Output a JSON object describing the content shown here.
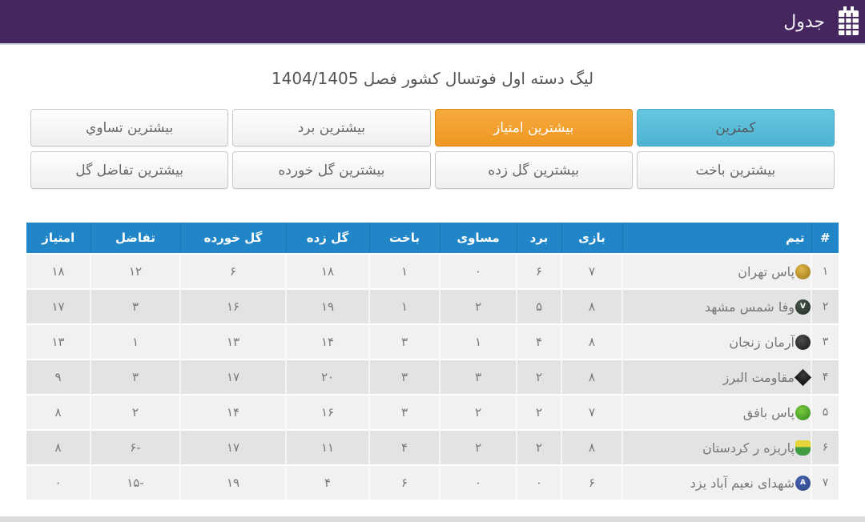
{
  "app_bar": {
    "title": "جدول",
    "icon": "table-icon",
    "bg_color": "#45265f"
  },
  "page": {
    "league_title": "لیگ دسته اول فوتسال کشور فصل 1404/1405"
  },
  "filters": {
    "active_color": "#f09c2a",
    "least_color": "#4fb6d4",
    "buttons": [
      {
        "label": "کمترین",
        "variant": "least"
      },
      {
        "label": "بیشترین امتیاز",
        "variant": "active"
      },
      {
        "label": "بیشترین برد",
        "variant": "default"
      },
      {
        "label": "بیشترین تساوي",
        "variant": "default"
      },
      {
        "label": "بیشترین باخت",
        "variant": "default"
      },
      {
        "label": "بیشترین گل زده",
        "variant": "default"
      },
      {
        "label": "بیشترین گل خورده",
        "variant": "default"
      },
      {
        "label": "بیشترین تفاضل گل",
        "variant": "default"
      }
    ]
  },
  "table": {
    "header_color": "#2086c8",
    "columns": [
      "#",
      "تیم",
      "بازی",
      "برد",
      "مساوی",
      "باخت",
      "گل زده",
      "گل خورده",
      "تفاضل",
      "امتیاز"
    ],
    "rows": [
      {
        "rank": "۱",
        "team": "پاس تهران",
        "logo": {
          "shape": "circle",
          "colors": [
            "#e0b84a",
            "#9a7517"
          ],
          "letter": ""
        },
        "played": "۷",
        "won": "۶",
        "drawn": "۰",
        "lost": "۱",
        "gf": "۱۸",
        "ga": "۶",
        "gd": "۱۲",
        "pts": "۱۸"
      },
      {
        "rank": "۲",
        "team": "وفا شمس مشهد",
        "logo": {
          "shape": "circle",
          "colors": [
            "#4a584f",
            "#1f2a24"
          ],
          "letter": "V"
        },
        "played": "۸",
        "won": "۵",
        "drawn": "۲",
        "lost": "۱",
        "gf": "۱۹",
        "ga": "۱۶",
        "gd": "۳",
        "pts": "۱۷"
      },
      {
        "rank": "۳",
        "team": "آرمان زنجان",
        "logo": {
          "shape": "circle",
          "colors": [
            "#4d4d4d",
            "#161616"
          ],
          "letter": ""
        },
        "played": "۸",
        "won": "۴",
        "drawn": "۱",
        "lost": "۳",
        "gf": "۱۴",
        "ga": "۱۳",
        "gd": "۱",
        "pts": "۱۳"
      },
      {
        "rank": "۴",
        "team": "مقاومت البرز",
        "logo": {
          "shape": "diamond",
          "colors": [
            "#3a3a3a",
            "#0d0d0d"
          ],
          "letter": ""
        },
        "played": "۸",
        "won": "۲",
        "drawn": "۳",
        "lost": "۳",
        "gf": "۲۰",
        "ga": "۱۷",
        "gd": "۳",
        "pts": "۹"
      },
      {
        "rank": "۵",
        "team": "پاس بافق",
        "logo": {
          "shape": "circle",
          "colors": [
            "#7ec940",
            "#2e8a1f"
          ],
          "letter": ""
        },
        "played": "۷",
        "won": "۲",
        "drawn": "۲",
        "lost": "۳",
        "gf": "۱۶",
        "ga": "۱۴",
        "gd": "۲",
        "pts": "۸"
      },
      {
        "rank": "۶",
        "team": "پاریزه ر کردستان",
        "logo": {
          "shape": "shield",
          "colors": [
            "#e6d53a",
            "#3e9b40"
          ],
          "letter": ""
        },
        "played": "۸",
        "won": "۲",
        "drawn": "۲",
        "lost": "۴",
        "gf": "۱۱",
        "ga": "۱۷",
        "gd": "-۶",
        "pts": "۸"
      },
      {
        "rank": "۷",
        "team": "شهدای نعیم آباد یزد",
        "logo": {
          "shape": "circle",
          "colors": [
            "#4a66b5",
            "#29417e"
          ],
          "letter": "A"
        },
        "played": "۶",
        "won": "۰",
        "drawn": "۰",
        "lost": "۶",
        "gf": "۴",
        "ga": "۱۹",
        "gd": "-۱۵",
        "pts": "۰"
      }
    ]
  }
}
